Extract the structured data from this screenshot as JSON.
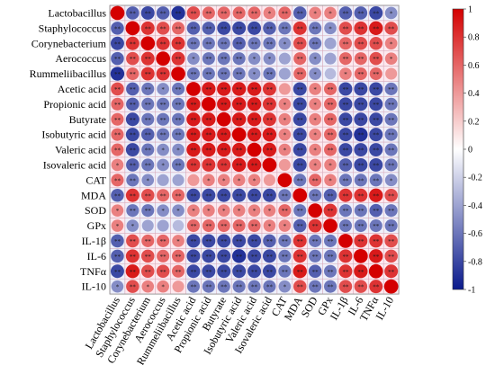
{
  "chart_data": {
    "type": "heatmap",
    "style": "circle-correlation-matrix",
    "variables": [
      "Lactobacillus",
      "Staphylococcus",
      "Corynebacterium",
      "Aerococcus",
      "Rummeliibacillus",
      "Acetic acid",
      "Propionic acid",
      "Butyrate",
      "Isobutyric acid",
      "Valeric acid",
      "Isovaleric acid",
      "CAT",
      "MDA",
      "SOD",
      "GPx",
      "IL-1β",
      "IL-6",
      "TNFα",
      "IL-10"
    ],
    "matrix": [
      [
        1,
        -0.7,
        -0.8,
        -0.7,
        -0.9,
        0.7,
        0.6,
        0.6,
        0.6,
        0.6,
        0.5,
        0.6,
        -0.7,
        0.5,
        0.5,
        -0.7,
        -0.7,
        -0.8,
        -0.5
      ],
      [
        -0.7,
        1,
        0.8,
        0.7,
        0.6,
        -0.7,
        -0.7,
        -0.8,
        -0.8,
        -0.8,
        -0.7,
        -0.6,
        0.8,
        -0.6,
        -0.5,
        0.7,
        0.8,
        0.9,
        0.7
      ],
      [
        -0.8,
        0.8,
        1,
        0.8,
        0.8,
        -0.6,
        -0.6,
        -0.6,
        -0.7,
        -0.6,
        -0.6,
        -0.5,
        0.7,
        -0.6,
        -0.4,
        0.6,
        0.7,
        0.7,
        0.5
      ],
      [
        -0.7,
        0.7,
        0.8,
        1,
        0.8,
        -0.5,
        -0.6,
        -0.6,
        -0.6,
        -0.5,
        -0.5,
        -0.4,
        0.6,
        -0.5,
        -0.4,
        0.6,
        0.6,
        0.7,
        0.5
      ],
      [
        -0.9,
        0.6,
        0.8,
        0.8,
        1,
        -0.6,
        -0.6,
        -0.6,
        -0.6,
        -0.5,
        -0.6,
        -0.4,
        0.6,
        -0.5,
        -0.3,
        0.5,
        0.6,
        0.6,
        0.4
      ],
      [
        0.7,
        -0.7,
        -0.6,
        -0.5,
        -0.6,
        1,
        0.9,
        0.9,
        0.9,
        0.9,
        0.8,
        0.4,
        -0.8,
        0.5,
        0.6,
        -0.8,
        -0.8,
        -0.8,
        -0.6
      ],
      [
        0.6,
        -0.7,
        -0.6,
        -0.6,
        -0.6,
        0.9,
        1,
        0.9,
        0.9,
        0.9,
        0.8,
        0.5,
        -0.8,
        0.5,
        0.6,
        -0.8,
        -0.8,
        -0.8,
        -0.6
      ],
      [
        0.6,
        -0.8,
        -0.6,
        -0.6,
        -0.6,
        0.9,
        0.9,
        1,
        0.9,
        0.9,
        0.8,
        0.5,
        -0.8,
        0.5,
        0.6,
        -0.8,
        -0.8,
        -0.8,
        -0.6
      ],
      [
        0.6,
        -0.8,
        -0.7,
        -0.6,
        -0.6,
        0.9,
        0.9,
        0.9,
        1,
        0.9,
        0.9,
        0.5,
        -0.8,
        0.5,
        0.6,
        -0.8,
        -0.9,
        -0.8,
        -0.6
      ],
      [
        0.6,
        -0.8,
        -0.6,
        -0.5,
        -0.5,
        0.9,
        0.9,
        0.9,
        0.9,
        1,
        0.9,
        0.5,
        -0.8,
        0.5,
        0.6,
        -0.8,
        -0.8,
        -0.8,
        -0.6
      ],
      [
        0.5,
        -0.7,
        -0.6,
        -0.5,
        -0.6,
        0.8,
        0.8,
        0.8,
        0.9,
        0.9,
        1,
        0.4,
        -0.8,
        0.5,
        0.5,
        -0.7,
        -0.8,
        -0.8,
        -0.6
      ],
      [
        0.6,
        -0.6,
        -0.5,
        -0.4,
        -0.4,
        0.4,
        0.5,
        0.5,
        0.5,
        0.5,
        0.4,
        1,
        -0.6,
        0.6,
        0.5,
        -0.6,
        -0.6,
        -0.6,
        -0.5
      ],
      [
        -0.7,
        0.8,
        0.7,
        0.6,
        0.6,
        -0.8,
        -0.8,
        -0.8,
        -0.8,
        -0.8,
        -0.8,
        -0.6,
        1,
        -0.6,
        -0.7,
        0.8,
        0.8,
        0.9,
        0.7
      ],
      [
        0.5,
        -0.6,
        -0.6,
        -0.5,
        -0.5,
        0.5,
        0.5,
        0.5,
        0.5,
        0.5,
        0.5,
        0.6,
        -0.6,
        1,
        0.8,
        -0.6,
        -0.6,
        -0.7,
        -0.6
      ],
      [
        0.5,
        -0.5,
        -0.4,
        -0.4,
        -0.3,
        0.6,
        0.6,
        0.6,
        0.6,
        0.6,
        0.5,
        0.5,
        -0.7,
        0.8,
        1,
        -0.6,
        -0.6,
        -0.6,
        -0.6
      ],
      [
        -0.7,
        0.7,
        0.6,
        0.6,
        0.5,
        -0.8,
        -0.8,
        -0.8,
        -0.8,
        -0.8,
        -0.7,
        -0.6,
        0.8,
        -0.6,
        -0.6,
        1,
        0.8,
        0.8,
        0.7
      ],
      [
        -0.7,
        0.8,
        0.7,
        0.6,
        0.6,
        -0.8,
        -0.8,
        -0.8,
        -0.9,
        -0.8,
        -0.8,
        -0.6,
        0.8,
        -0.6,
        -0.6,
        0.8,
        1,
        0.9,
        0.7
      ],
      [
        -0.8,
        0.9,
        0.7,
        0.7,
        0.6,
        -0.8,
        -0.8,
        -0.8,
        -0.8,
        -0.8,
        -0.8,
        -0.6,
        0.9,
        -0.7,
        -0.6,
        0.8,
        0.9,
        1,
        0.8
      ],
      [
        -0.5,
        0.7,
        0.5,
        0.5,
        0.4,
        -0.6,
        -0.6,
        -0.6,
        -0.6,
        -0.6,
        -0.6,
        -0.5,
        0.7,
        -0.6,
        -0.6,
        0.7,
        0.7,
        0.8,
        1
      ]
    ],
    "significance_marks": [
      "*",
      "**"
    ],
    "colorbar": {
      "range": [
        -1,
        1
      ],
      "ticks": [
        "1",
        "0.8",
        "0.6",
        "0.4",
        "0.2",
        "0",
        "-0.2",
        "-0.4",
        "-0.6",
        "-0.8",
        "-1"
      ],
      "colors": {
        "negative": "#0a1a8c",
        "zero": "#ffffff",
        "positive": "#d40000"
      }
    },
    "grid": true,
    "legend_placement": "right"
  }
}
